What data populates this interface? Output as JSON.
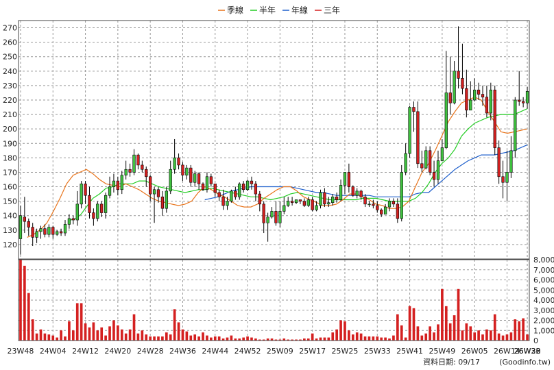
{
  "chart_data": {
    "type": "candlestick",
    "legend": [
      {
        "name": "季線",
        "color": "#e8731a"
      },
      {
        "name": "半年",
        "color": "#22cc22"
      },
      {
        "name": "年線",
        "color": "#1e5fcc"
      },
      {
        "name": "三年",
        "color": "#d62020"
      }
    ],
    "price_axis": {
      "min": 110,
      "max": 275,
      "ticks": [
        120,
        130,
        140,
        150,
        160,
        170,
        180,
        190,
        200,
        210,
        220,
        230,
        240,
        250,
        260,
        270
      ]
    },
    "volume_axis": {
      "min": 0,
      "max": 8000,
      "ticks": [
        "0",
        "1,000",
        "2,000",
        "3,000",
        "4,000",
        "5,000",
        "6,000",
        "7,000",
        "8,000"
      ]
    },
    "x_labels": [
      "23W48",
      "24W04",
      "24W12",
      "24W20",
      "24W28",
      "24W36",
      "24W44",
      "24W52",
      "25W09",
      "25W17",
      "25W25",
      "25W33",
      "25W41",
      "25W49",
      "26W05",
      "26W14",
      "26W22",
      "26W30",
      "26W38"
    ],
    "x_label_every": 8,
    "candles": [
      [
        124,
        140,
        147,
        113
      ],
      [
        139,
        136,
        153,
        128
      ],
      [
        136,
        132,
        138,
        126
      ],
      [
        132,
        125,
        135,
        119
      ],
      [
        125,
        129,
        131,
        121
      ],
      [
        129,
        131,
        133,
        124
      ],
      [
        131,
        127,
        134,
        125
      ],
      [
        127,
        132,
        134,
        125
      ],
      [
        132,
        127,
        133,
        124
      ],
      [
        127,
        129,
        130,
        126
      ],
      [
        129,
        128,
        131,
        126
      ],
      [
        128,
        134,
        137,
        126
      ],
      [
        134,
        138,
        141,
        131
      ],
      [
        138,
        137,
        140,
        134
      ],
      [
        137,
        148,
        157,
        133
      ],
      [
        148,
        162,
        164,
        145
      ],
      [
        162,
        154,
        164,
        148
      ],
      [
        154,
        142,
        160,
        138
      ],
      [
        142,
        138,
        145,
        133
      ],
      [
        138,
        148,
        150,
        136
      ],
      [
        148,
        142,
        150,
        139
      ],
      [
        142,
        154,
        156,
        138
      ],
      [
        154,
        160,
        167,
        152
      ],
      [
        160,
        164,
        169,
        156
      ],
      [
        164,
        158,
        167,
        154
      ],
      [
        158,
        168,
        171,
        155
      ],
      [
        168,
        172,
        178,
        165
      ],
      [
        172,
        170,
        176,
        167
      ],
      [
        170,
        182,
        186,
        168
      ],
      [
        182,
        175,
        183,
        172
      ],
      [
        175,
        172,
        178,
        170
      ],
      [
        172,
        167,
        174,
        160
      ],
      [
        167,
        155,
        168,
        150
      ],
      [
        155,
        158,
        160,
        135
      ],
      [
        158,
        153,
        160,
        149
      ],
      [
        153,
        145,
        157,
        140
      ],
      [
        145,
        157,
        160,
        142
      ],
      [
        157,
        172,
        178,
        155
      ],
      [
        172,
        180,
        193,
        169
      ],
      [
        180,
        175,
        183,
        172
      ],
      [
        175,
        168,
        177,
        164
      ],
      [
        168,
        173,
        175,
        165
      ],
      [
        173,
        163,
        175,
        160
      ],
      [
        163,
        169,
        171,
        160
      ],
      [
        169,
        162,
        170,
        158
      ],
      [
        162,
        158,
        163,
        157
      ],
      [
        158,
        167,
        170,
        156
      ],
      [
        167,
        162,
        169,
        160
      ],
      [
        162,
        156,
        162,
        153
      ],
      [
        156,
        153,
        158,
        150
      ],
      [
        153,
        147,
        158,
        144
      ],
      [
        147,
        150,
        153,
        144
      ],
      [
        150,
        157,
        158,
        149
      ],
      [
        157,
        153,
        160,
        151
      ],
      [
        153,
        162,
        163,
        151
      ],
      [
        162,
        158,
        164,
        156
      ],
      [
        158,
        164,
        165,
        157
      ],
      [
        164,
        162,
        167,
        158
      ],
      [
        162,
        155,
        164,
        150
      ],
      [
        155,
        148,
        157,
        143
      ],
      [
        148,
        135,
        150,
        128
      ],
      [
        135,
        139,
        142,
        122
      ],
      [
        139,
        143,
        146,
        138
      ],
      [
        143,
        135,
        150,
        133
      ],
      [
        135,
        143,
        150,
        132
      ],
      [
        143,
        147,
        153,
        141
      ],
      [
        147,
        150,
        153,
        146
      ],
      [
        150,
        149,
        153,
        147
      ],
      [
        149,
        151,
        151,
        148
      ],
      [
        151,
        150,
        151,
        148
      ],
      [
        150,
        147,
        152,
        146
      ],
      [
        147,
        151,
        153,
        146
      ],
      [
        151,
        144,
        153,
        143
      ],
      [
        144,
        147,
        150,
        143
      ],
      [
        147,
        156,
        158,
        145
      ],
      [
        156,
        148,
        159,
        146
      ],
      [
        148,
        149,
        153,
        146
      ],
      [
        149,
        153,
        155,
        147
      ],
      [
        153,
        151,
        156,
        149
      ],
      [
        151,
        161,
        165,
        150
      ],
      [
        161,
        170,
        170,
        155
      ],
      [
        170,
        160,
        176,
        156
      ],
      [
        160,
        154,
        161,
        153
      ],
      [
        154,
        157,
        159,
        152
      ],
      [
        157,
        153,
        158,
        151
      ],
      [
        153,
        148,
        155,
        146
      ],
      [
        148,
        148,
        150,
        146
      ],
      [
        148,
        147,
        151,
        145
      ],
      [
        147,
        144,
        150,
        142
      ],
      [
        144,
        141,
        145,
        139
      ],
      [
        141,
        146,
        148,
        141
      ],
      [
        146,
        150,
        152,
        143
      ],
      [
        150,
        148,
        152,
        146
      ],
      [
        148,
        138,
        152,
        135
      ],
      [
        138,
        170,
        175,
        136
      ],
      [
        170,
        183,
        190,
        168
      ],
      [
        183,
        215,
        216,
        180
      ],
      [
        215,
        212,
        219,
        198
      ],
      [
        212,
        176,
        219,
        173
      ],
      [
        176,
        173,
        185,
        170
      ],
      [
        173,
        185,
        188,
        172
      ],
      [
        185,
        170,
        188,
        168
      ],
      [
        170,
        165,
        178,
        160
      ],
      [
        165,
        178,
        185,
        162
      ],
      [
        178,
        187,
        193,
        180
      ],
      [
        187,
        225,
        254,
        186
      ],
      [
        225,
        218,
        250,
        210
      ],
      [
        218,
        240,
        247,
        217
      ],
      [
        240,
        235,
        271,
        228
      ],
      [
        235,
        228,
        259,
        224
      ],
      [
        228,
        213,
        241,
        208
      ],
      [
        213,
        220,
        233,
        214
      ],
      [
        220,
        227,
        235,
        219
      ],
      [
        227,
        224,
        232,
        220
      ],
      [
        224,
        222,
        230,
        216
      ],
      [
        222,
        211,
        230,
        208
      ],
      [
        211,
        227,
        232,
        206
      ],
      [
        227,
        187,
        230,
        182
      ],
      [
        187,
        167,
        192,
        162
      ],
      [
        167,
        163,
        178,
        152
      ],
      [
        163,
        170,
        185,
        150
      ],
      [
        170,
        185,
        195,
        166
      ],
      [
        185,
        220,
        222,
        180
      ],
      [
        220,
        219,
        240,
        216
      ],
      [
        219,
        218,
        222,
        215
      ],
      [
        218,
        226,
        229,
        214
      ]
    ],
    "volumes": [
      8000,
      7400,
      4700,
      2100,
      700,
      1100,
      700,
      600,
      500,
      300,
      1000,
      400,
      1900,
      1000,
      3700,
      3700,
      1700,
      1300,
      1800,
      1000,
      1300,
      500,
      1400,
      2000,
      1500,
      1100,
      700,
      1100,
      2600,
      700,
      1000,
      600,
      400,
      400,
      400,
      400,
      800,
      600,
      3100,
      1800,
      1100,
      900,
      500,
      600,
      400,
      800,
      500,
      300,
      400,
      400,
      200,
      300,
      500,
      200,
      200,
      300,
      400,
      300,
      200,
      100,
      100,
      200,
      200,
      100,
      100,
      200,
      100,
      100,
      100,
      100,
      200,
      200,
      700,
      200,
      300,
      300,
      300,
      800,
      1100,
      2000,
      1900,
      1000,
      600,
      800,
      700,
      400,
      400,
      400,
      400,
      300,
      300,
      200,
      500,
      2600,
      1500,
      300,
      3400,
      3200,
      1400,
      500,
      700,
      1400,
      800,
      1600,
      5100,
      3400,
      1700,
      2500,
      5100,
      1000,
      1700,
      1400,
      800,
      1000,
      600,
      1100,
      1000,
      2600,
      700,
      500,
      600,
      800,
      2100,
      1900,
      2200,
      600
    ],
    "ma_quarter": [
      [
        5,
        125
      ],
      [
        10,
        127
      ],
      [
        16,
        131
      ],
      [
        20,
        135
      ],
      [
        25,
        143
      ],
      [
        30,
        152
      ],
      [
        35,
        162
      ],
      [
        40,
        168
      ],
      [
        45,
        170
      ],
      [
        50,
        172
      ],
      [
        55,
        169
      ],
      [
        60,
        165
      ],
      [
        65,
        162
      ],
      [
        70,
        161
      ],
      [
        75,
        160
      ],
      [
        80,
        162
      ],
      [
        85,
        160
      ],
      [
        90,
        158
      ],
      [
        95,
        155
      ],
      [
        100,
        152
      ],
      [
        105,
        150
      ],
      [
        110,
        149
      ],
      [
        115,
        148
      ],
      [
        120,
        147
      ],
      [
        125,
        148
      ],
      [
        130,
        150
      ],
      [
        135,
        156
      ],
      [
        140,
        160
      ],
      [
        145,
        158
      ],
      [
        150,
        155
      ],
      [
        155,
        153
      ],
      [
        160,
        150
      ],
      [
        165,
        147
      ],
      [
        170,
        146
      ],
      [
        175,
        146
      ],
      [
        180,
        148
      ],
      [
        185,
        152
      ],
      [
        190,
        155
      ],
      [
        195,
        158
      ],
      [
        200,
        160
      ],
      [
        205,
        160
      ],
      [
        210,
        157
      ],
      [
        215,
        153
      ],
      [
        220,
        151
      ],
      [
        225,
        149
      ],
      [
        230,
        147
      ],
      [
        235,
        147
      ],
      [
        240,
        148
      ],
      [
        245,
        151
      ],
      [
        250,
        155
      ],
      [
        255,
        155
      ],
      [
        260,
        153
      ],
      [
        265,
        151
      ],
      [
        270,
        148
      ],
      [
        275,
        147
      ],
      [
        280,
        145
      ],
      [
        285,
        145
      ],
      [
        290,
        146
      ],
      [
        295,
        150
      ],
      [
        300,
        160
      ],
      [
        305,
        170
      ],
      [
        310,
        176
      ],
      [
        315,
        185
      ],
      [
        320,
        195
      ],
      [
        325,
        205
      ],
      [
        330,
        212
      ],
      [
        335,
        218
      ],
      [
        340,
        220
      ],
      [
        345,
        222
      ],
      [
        350,
        220
      ],
      [
        355,
        212
      ],
      [
        360,
        205
      ],
      [
        365,
        198
      ],
      [
        370,
        197
      ],
      [
        375,
        198
      ],
      [
        380,
        199
      ],
      [
        385,
        200
      ]
    ],
    "ma_half": [
      [
        38,
        137
      ],
      [
        42,
        138
      ],
      [
        46,
        141
      ],
      [
        50,
        146
      ],
      [
        55,
        152
      ],
      [
        60,
        155
      ],
      [
        65,
        159
      ],
      [
        70,
        160
      ],
      [
        75,
        162
      ],
      [
        80,
        162
      ],
      [
        85,
        162
      ],
      [
        90,
        164
      ],
      [
        95,
        164
      ],
      [
        100,
        162
      ],
      [
        105,
        160
      ],
      [
        110,
        159
      ],
      [
        115,
        158
      ],
      [
        120,
        157
      ],
      [
        125,
        156
      ],
      [
        130,
        157
      ],
      [
        135,
        158
      ],
      [
        140,
        158
      ],
      [
        145,
        159
      ],
      [
        150,
        158
      ],
      [
        155,
        157
      ],
      [
        160,
        156
      ],
      [
        165,
        155
      ],
      [
        170,
        154
      ],
      [
        175,
        153
      ],
      [
        180,
        153
      ],
      [
        185,
        152
      ],
      [
        190,
        151
      ],
      [
        195,
        152
      ],
      [
        200,
        153
      ],
      [
        205,
        155
      ],
      [
        210,
        156
      ],
      [
        215,
        155
      ],
      [
        220,
        154
      ],
      [
        225,
        153
      ],
      [
        230,
        152
      ],
      [
        235,
        151
      ],
      [
        240,
        151
      ],
      [
        245,
        151
      ],
      [
        250,
        151
      ],
      [
        255,
        151
      ],
      [
        260,
        152
      ],
      [
        265,
        152
      ],
      [
        270,
        152
      ],
      [
        275,
        151
      ],
      [
        280,
        150
      ],
      [
        285,
        150
      ],
      [
        290,
        150
      ],
      [
        295,
        150
      ],
      [
        300,
        152
      ],
      [
        305,
        156
      ],
      [
        310,
        162
      ],
      [
        315,
        170
      ],
      [
        320,
        176
      ],
      [
        325,
        180
      ],
      [
        330,
        186
      ],
      [
        335,
        195
      ],
      [
        340,
        200
      ],
      [
        345,
        204
      ],
      [
        350,
        206
      ],
      [
        355,
        208
      ],
      [
        360,
        209
      ],
      [
        365,
        210
      ],
      [
        370,
        210
      ],
      [
        375,
        210
      ],
      [
        380,
        212
      ],
      [
        385,
        214
      ]
    ],
    "ma_year": [
      [
        140,
        151
      ],
      [
        145,
        152
      ],
      [
        150,
        153
      ],
      [
        155,
        155
      ],
      [
        160,
        157
      ],
      [
        165,
        158
      ],
      [
        170,
        159
      ],
      [
        175,
        160
      ],
      [
        180,
        160
      ],
      [
        185,
        160
      ],
      [
        190,
        160
      ],
      [
        195,
        160
      ],
      [
        200,
        160
      ],
      [
        205,
        160
      ],
      [
        210,
        159
      ],
      [
        215,
        158
      ],
      [
        220,
        157
      ],
      [
        225,
        156
      ],
      [
        230,
        156
      ],
      [
        235,
        155
      ],
      [
        240,
        154
      ],
      [
        245,
        154
      ],
      [
        250,
        154
      ],
      [
        255,
        154
      ],
      [
        260,
        154
      ],
      [
        265,
        154
      ],
      [
        270,
        153
      ],
      [
        275,
        153
      ],
      [
        280,
        153
      ],
      [
        285,
        153
      ],
      [
        290,
        153
      ],
      [
        295,
        153
      ],
      [
        300,
        155
      ],
      [
        305,
        156
      ],
      [
        310,
        156
      ],
      [
        315,
        160
      ],
      [
        320,
        164
      ],
      [
        325,
        168
      ],
      [
        330,
        172
      ],
      [
        335,
        175
      ],
      [
        340,
        178
      ],
      [
        345,
        180
      ],
      [
        350,
        182
      ],
      [
        355,
        182
      ],
      [
        360,
        182
      ],
      [
        365,
        183
      ],
      [
        370,
        184
      ],
      [
        375,
        185
      ],
      [
        380,
        187
      ],
      [
        385,
        189
      ]
    ]
  },
  "footer": {
    "date_label": "資料日期: 09/17",
    "source": "(Goodinfo.tw)"
  }
}
